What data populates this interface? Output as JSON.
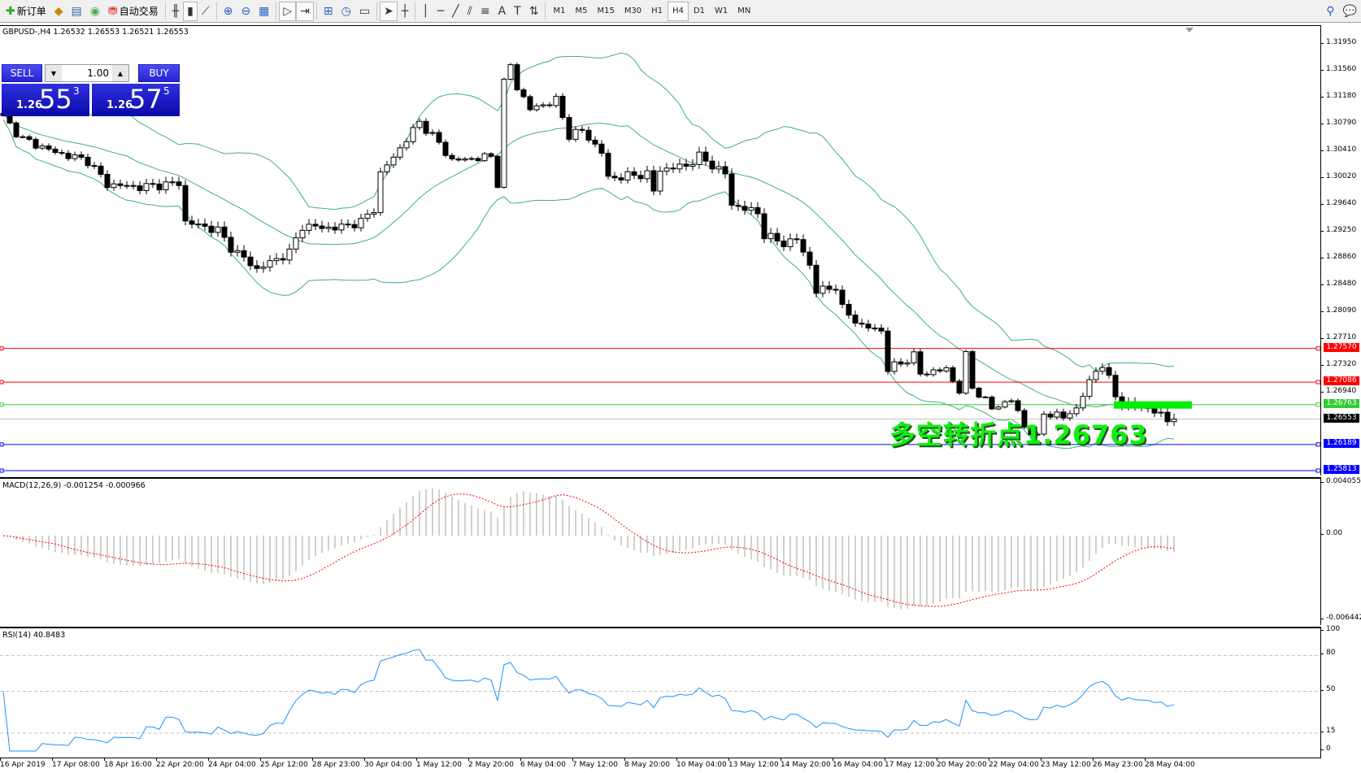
{
  "toolbar": {
    "items": [
      {
        "icon": "new-order-icon",
        "label": "新订单"
      },
      {
        "icon": "expert-icon",
        "label": ""
      },
      {
        "icon": "terminal-icon",
        "label": ""
      },
      {
        "icon": "signal-icon",
        "label": ""
      },
      {
        "icon": "autotrading-icon",
        "label": "自动交易"
      }
    ],
    "chart_tools": [
      "bar-chart-icon",
      "candlestick-icon",
      "line-chart-icon",
      "zoom-in-icon",
      "zoom-out-icon",
      "tile-windows-icon",
      "autoscroll-icon",
      "chart-shift-icon",
      "indicators-icon",
      "periods-icon",
      "templates-icon",
      "cursor-icon",
      "crosshair-icon",
      "vertical-line-icon",
      "horizontal-line-icon",
      "trendline-icon",
      "equidistant-channel-icon",
      "fibonacci-icon",
      "text-icon",
      "text-label-icon",
      "arrows-icon"
    ],
    "timeframes": [
      "M1",
      "M5",
      "M15",
      "M30",
      "H1",
      "H4",
      "D1",
      "W1",
      "MN"
    ],
    "active_timeframe": "H4"
  },
  "chart": {
    "title": "GBPUSD-,H4  1.26532 1.26553 1.26521 1.26553",
    "trade_panel": {
      "sell": "SELL",
      "buy": "BUY",
      "lot": "1.00",
      "bid_big": "1.26",
      "bid_pips": "55",
      "bid_frac": "3",
      "ask_big": "1.26",
      "ask_pips": "57",
      "ask_frac": "5"
    },
    "annotation": "多空转折点1.26763",
    "colors": {
      "bands": "#3cb371",
      "red_line": "#ff0000",
      "green_line": "#33cc33",
      "blue_line": "#0000ff",
      "bid_line": "#c0c0c0",
      "bull": "#ffffff",
      "bear": "#000000"
    }
  },
  "chart_data": [
    {
      "type": "candlestick",
      "name": "",
      "indicator": "Bollinger Bands",
      "timeframe": "H4",
      "close_keypoints": [
        [
          0,
          1.3089
        ],
        [
          3,
          1.3058
        ],
        [
          8,
          1.3039
        ],
        [
          13,
          1.3027
        ],
        [
          16,
          1.2993
        ],
        [
          21,
          1.2989
        ],
        [
          27,
          1.2995
        ],
        [
          28,
          1.2939
        ],
        [
          33,
          1.2927
        ],
        [
          35,
          1.2902
        ],
        [
          39,
          1.2871
        ],
        [
          44,
          1.2895
        ],
        [
          46,
          1.2933
        ],
        [
          51,
          1.293
        ],
        [
          55,
          1.2939
        ],
        [
          57,
          1.2958
        ],
        [
          58,
          1.3008
        ],
        [
          61,
          1.3045
        ],
        [
          64,
          1.3083
        ],
        [
          67,
          1.3052
        ],
        [
          69,
          1.3027
        ],
        [
          75,
          1.3033
        ],
        [
          76,
          1.2995
        ],
        [
          77,
          1.3139
        ],
        [
          78,
          1.3164
        ],
        [
          79,
          1.3133
        ],
        [
          81,
          1.3101
        ],
        [
          85,
          1.3114
        ],
        [
          87,
          1.3064
        ],
        [
          89,
          1.307
        ],
        [
          92,
          1.3039
        ],
        [
          93,
          1.3002
        ],
        [
          99,
          1.3008
        ],
        [
          100,
          1.2983
        ],
        [
          101,
          1.3014
        ],
        [
          105,
          1.302
        ],
        [
          107,
          1.3033
        ],
        [
          111,
          1.3008
        ],
        [
          112,
          1.2964
        ],
        [
          116,
          1.2952
        ],
        [
          117,
          1.292
        ],
        [
          120,
          1.2908
        ],
        [
          122,
          1.2914
        ],
        [
          124,
          1.2877
        ],
        [
          125,
          1.2839
        ],
        [
          128,
          1.2846
        ],
        [
          129,
          1.2814
        ],
        [
          132,
          1.2789
        ],
        [
          135,
          1.2783
        ],
        [
          136,
          1.2727
        ],
        [
          140,
          1.2746
        ],
        [
          141,
          1.2721
        ],
        [
          145,
          1.2727
        ],
        [
          147,
          1.2696
        ],
        [
          148,
          1.2746
        ],
        [
          149,
          1.2702
        ],
        [
          152,
          1.2671
        ],
        [
          155,
          1.2683
        ],
        [
          157,
          1.2646
        ],
        [
          159,
          1.2627
        ],
        [
          160,
          1.2665
        ],
        [
          163,
          1.2658
        ],
        [
          165,
          1.2671
        ],
        [
          167,
          1.2708
        ],
        [
          168,
          1.2727
        ],
        [
          169,
          1.2733
        ],
        [
          171,
          1.269
        ],
        [
          172,
          1.2677
        ],
        [
          176,
          1.2671
        ],
        [
          179,
          1.2655
        ],
        [
          180,
          1.26553
        ]
      ],
      "ylim": [
        1.25731,
        1.32207
      ],
      "y_ticks": [
        "1.31950",
        "1.31560",
        "1.31180",
        "1.30790",
        "1.30410",
        "1.30020",
        "1.29640",
        "1.29250",
        "1.28860",
        "1.28480",
        "1.28090",
        "1.27710",
        "1.27320",
        "1.26940"
      ],
      "levels": [
        {
          "value": "1.27570",
          "color": "#ff0000"
        },
        {
          "value": "1.27086",
          "color": "#ff0000"
        },
        {
          "value": "1.26763",
          "color": "#33cc33"
        },
        {
          "value": "1.26553",
          "color": "#000000",
          "bid": true
        },
        {
          "value": "1.26189",
          "color": "#0000ff"
        },
        {
          "value": "1.25813",
          "color": "#0000ff"
        }
      ],
      "x_ticks": [
        "16 Apr 2019",
        "17 Apr 08:00",
        "18 Apr 16:00",
        "22 Apr 20:00",
        "24 Apr 04:00",
        "25 Apr 12:00",
        "28 Apr 23:00",
        "30 Apr 04:00",
        "1 May 12:00",
        "2 May 20:00",
        "6 May 04:00",
        "7 May 12:00",
        "8 May 20:00",
        "10 May 04:00",
        "13 May 12:00",
        "14 May 20:00",
        "16 May 04:00",
        "17 May 12:00",
        "20 May 20:00",
        "22 May 04:00",
        "23 May 12:00",
        "26 May 23:00",
        "28 May 04:00"
      ]
    },
    {
      "type": "bar",
      "name": "",
      "label": "MACD(12,26,9) -0.001254 -0.000966",
      "ylim": [
        -0.006442,
        0.004055
      ],
      "y_ticks": [
        "0.004055",
        "0.00",
        "-0.006442"
      ],
      "histogram_color": "#c0c0c0",
      "signal_color": "#ff0000"
    },
    {
      "type": "line",
      "name": "",
      "label": "RSI(14) 40.8483",
      "ylim": [
        0,
        100
      ],
      "y_ticks": [
        "100",
        "80",
        "50",
        "15",
        "0"
      ],
      "levels": [
        80,
        50,
        15
      ],
      "color": "#1e90ff"
    }
  ]
}
